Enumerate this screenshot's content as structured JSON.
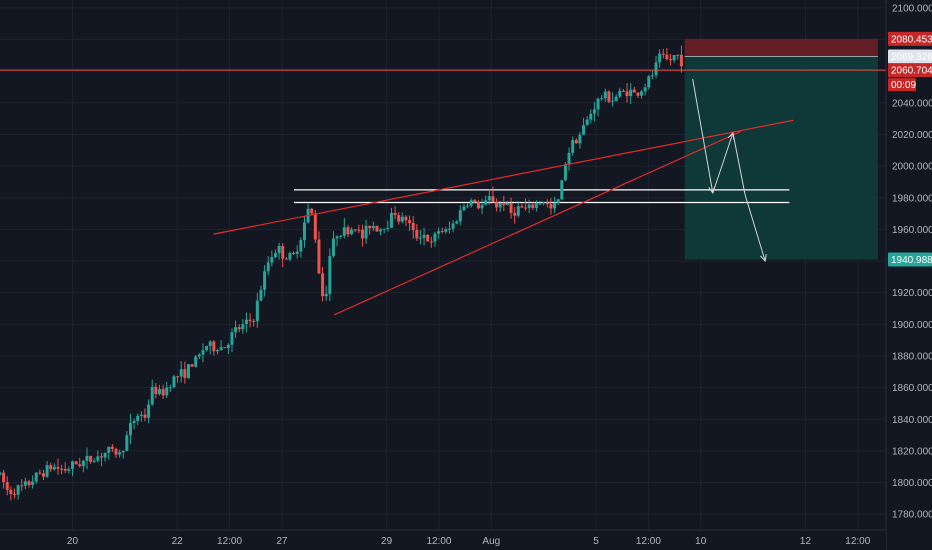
{
  "chart_data": {
    "type": "candlestick",
    "title": "",
    "xlabel": "",
    "ylabel": "",
    "ylim": [
      1770,
      2105
    ],
    "grid": true,
    "y_ticks": [
      1780,
      1800,
      1820,
      1840,
      1860,
      1880,
      1900,
      1920,
      1940,
      1960,
      1980,
      2000,
      2020,
      2040,
      2060,
      2080,
      2100
    ],
    "y_tick_labels": [
      "1780.000",
      "1800.000",
      "1820.000",
      "1840.000",
      "1860.000",
      "1880.000",
      "1900.000",
      "1920.000",
      "1940.000",
      "1960.000",
      "1980.000",
      "2000.000",
      "2020.000",
      "2040.000",
      "2060.000",
      "2080.000",
      "2100.000"
    ],
    "x_ticks": [
      {
        "t": 18,
        "label": "20"
      },
      {
        "t": 44,
        "label": "22"
      },
      {
        "t": 57,
        "label": "12:00"
      },
      {
        "t": 70,
        "label": "27"
      },
      {
        "t": 96,
        "label": "29"
      },
      {
        "t": 109,
        "label": "12:00"
      },
      {
        "t": 122,
        "label": "Aug"
      },
      {
        "t": 148,
        "label": "5"
      },
      {
        "t": 161,
        "label": "12:00"
      },
      {
        "t": 174,
        "label": "10"
      },
      {
        "t": 200,
        "label": "12"
      },
      {
        "t": 213,
        "label": "12:00"
      }
    ],
    "t_range": [
      0,
      220
    ],
    "price_path": [
      [
        0,
        1805
      ],
      [
        2,
        1794
      ],
      [
        6,
        1797
      ],
      [
        10,
        1806
      ],
      [
        13,
        1810
      ],
      [
        16,
        1808
      ],
      [
        19,
        1812
      ],
      [
        23,
        1815
      ],
      [
        27,
        1820
      ],
      [
        30,
        1818
      ],
      [
        32,
        1833
      ],
      [
        34,
        1843
      ],
      [
        36,
        1842
      ],
      [
        38,
        1860
      ],
      [
        40,
        1855
      ],
      [
        43,
        1866
      ],
      [
        46,
        1870
      ],
      [
        49,
        1878
      ],
      [
        51,
        1887
      ],
      [
        53,
        1885
      ],
      [
        56,
        1886
      ],
      [
        58,
        1895
      ],
      [
        61,
        1900
      ],
      [
        63,
        1904
      ],
      [
        65,
        1925
      ],
      [
        67,
        1943
      ],
      [
        69,
        1948
      ],
      [
        71,
        1942
      ],
      [
        73,
        1943
      ],
      [
        75,
        1958
      ],
      [
        76,
        1968
      ],
      [
        77,
        1975
      ],
      [
        78,
        1962
      ],
      [
        79,
        1938
      ],
      [
        80,
        1918
      ],
      [
        81,
        1922
      ],
      [
        82,
        1946
      ],
      [
        84,
        1960
      ],
      [
        86,
        1958
      ],
      [
        88,
        1962
      ],
      [
        90,
        1955
      ],
      [
        92,
        1964
      ],
      [
        94,
        1960
      ],
      [
        96,
        1963
      ],
      [
        98,
        1972
      ],
      [
        99,
        1966
      ],
      [
        101,
        1967
      ],
      [
        103,
        1955
      ],
      [
        105,
        1958
      ],
      [
        107,
        1950
      ],
      [
        109,
        1960
      ],
      [
        111,
        1958
      ],
      [
        113,
        1965
      ],
      [
        115,
        1975
      ],
      [
        117,
        1978
      ],
      [
        119,
        1974
      ],
      [
        121,
        1977
      ],
      [
        122,
        1982
      ],
      [
        123,
        1974
      ],
      [
        125,
        1978
      ],
      [
        127,
        1970
      ],
      [
        129,
        1974
      ],
      [
        131,
        1972
      ],
      [
        133,
        1976
      ],
      [
        135,
        1978
      ],
      [
        137,
        1972
      ],
      [
        139,
        1980
      ],
      [
        140,
        2000
      ],
      [
        142,
        2015
      ],
      [
        144,
        2020
      ],
      [
        146,
        2030
      ],
      [
        148,
        2040
      ],
      [
        150,
        2045
      ],
      [
        152,
        2042
      ],
      [
        154,
        2046
      ],
      [
        156,
        2048
      ],
      [
        158,
        2045
      ],
      [
        160,
        2050
      ],
      [
        162,
        2058
      ],
      [
        164,
        2070
      ],
      [
        166,
        2066
      ],
      [
        168,
        2071
      ],
      [
        170,
        2064
      ]
    ],
    "wedge_top_line": {
      "from": [
        53,
        1957
      ],
      "to": [
        197,
        2029
      ]
    },
    "wedge_bottom_line": {
      "from": [
        83,
        1906
      ],
      "to": [
        184,
        2022
      ]
    },
    "resistance_band": {
      "t_start": 73,
      "t_end": 196,
      "top": 1985,
      "bottom": 1977
    },
    "current_price": {
      "value": 2060.704,
      "label": "2060.704",
      "timer": "00:09"
    },
    "short_position": {
      "t_start": 170,
      "t_end": 218,
      "entry": 2069.326,
      "entry_label": "2069.326",
      "stop": 2080.453,
      "stop_label": "2080.453",
      "target": 1940.988,
      "target_label": "1940.988"
    },
    "projection_path": [
      [
        172,
        2055
      ],
      [
        177,
        1983
      ],
      [
        182,
        2021
      ],
      [
        185,
        1982
      ],
      [
        190,
        1940
      ]
    ],
    "colors": {
      "background": "#131722",
      "grid": "#1e222d",
      "axis_text": "#b2b5be",
      "up_candle": "#26a69a",
      "down_candle": "#ef5350",
      "price_line": "#ef5350",
      "trendline": "#e32b2b",
      "band_line": "#ffffff",
      "stop_zone": "#6d1e26",
      "target_zone": "#0f3a3a",
      "target_badge": "#26a69a",
      "stop_badge": "#c62828",
      "entry_badge": "#5d606b"
    }
  }
}
